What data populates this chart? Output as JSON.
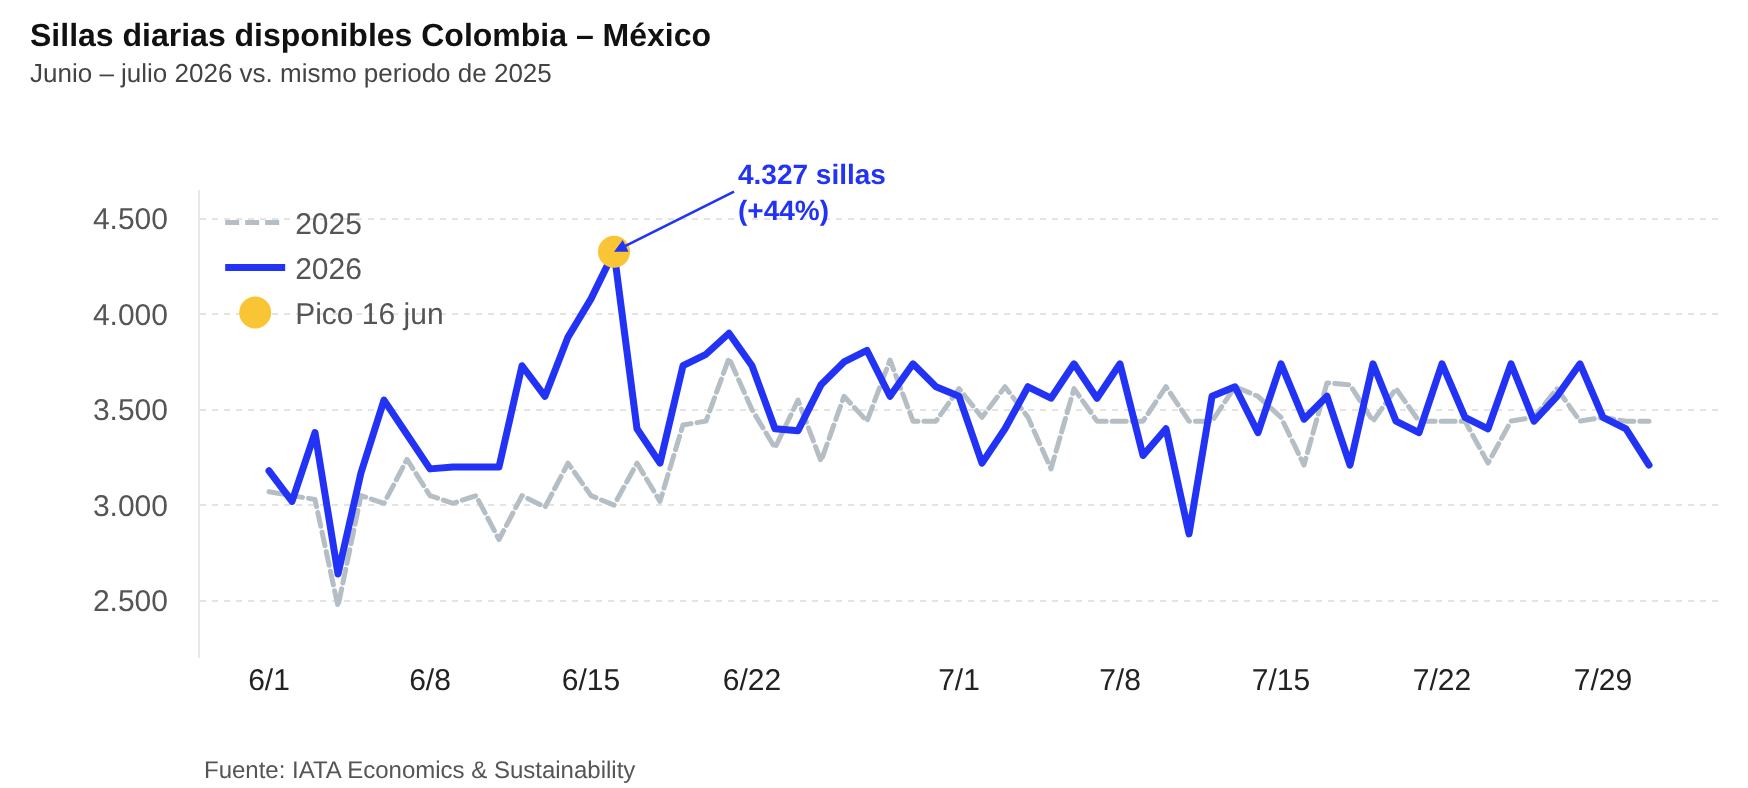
{
  "chart_data": {
    "type": "line",
    "title": "Sillas diarias disponibles Colombia – México",
    "subtitle": "Junio – julio 2026 vs. mismo periodo de 2025",
    "x": [
      "2026-06-01",
      "2026-06-02",
      "2026-06-03",
      "2026-06-04",
      "2026-06-05",
      "2026-06-06",
      "2026-06-07",
      "2026-06-08",
      "2026-06-09",
      "2026-06-10",
      "2026-06-11",
      "2026-06-12",
      "2026-06-13",
      "2026-06-14",
      "2026-06-15",
      "2026-06-16",
      "2026-06-17",
      "2026-06-18",
      "2026-06-19",
      "2026-06-20",
      "2026-06-21",
      "2026-06-22",
      "2026-06-23",
      "2026-06-24",
      "2026-06-25",
      "2026-06-26",
      "2026-06-27",
      "2026-06-28",
      "2026-06-29",
      "2026-06-30",
      "2026-07-01",
      "2026-07-02",
      "2026-07-03",
      "2026-07-04",
      "2026-07-05",
      "2026-07-06",
      "2026-07-07",
      "2026-07-08",
      "2026-07-09",
      "2026-07-10",
      "2026-07-11",
      "2026-07-12",
      "2026-07-13",
      "2026-07-14",
      "2026-07-15",
      "2026-07-16",
      "2026-07-17",
      "2026-07-18",
      "2026-07-19",
      "2026-07-20",
      "2026-07-21",
      "2026-07-22",
      "2026-07-23",
      "2026-07-24",
      "2026-07-25",
      "2026-07-26",
      "2026-07-27",
      "2026-07-28",
      "2026-07-29",
      "2026-07-30",
      "2026-07-31"
    ],
    "series": [
      {
        "name": "2025",
        "color": "#b4bec4",
        "line_style": "dashed",
        "values": [
          3070,
          3050,
          3030,
          2470,
          3050,
          3010,
          3240,
          3050,
          3010,
          3050,
          2820,
          3050,
          2990,
          3220,
          3050,
          3000,
          3220,
          3020,
          3420,
          3440,
          3770,
          3500,
          3300,
          3550,
          3230,
          3570,
          3440,
          3760,
          3440,
          3440,
          3610,
          3460,
          3620,
          3460,
          3190,
          3610,
          3440,
          3440,
          3440,
          3620,
          3440,
          3440,
          3620,
          3570,
          3460,
          3210,
          3640,
          3630,
          3440,
          3610,
          3440,
          3440,
          3440,
          3220,
          3440,
          3460,
          3610,
          3440,
          3460,
          3440,
          3440
        ]
      },
      {
        "name": "2026",
        "color": "#2233f5",
        "line_style": "solid",
        "values": [
          3180,
          3020,
          3380,
          2640,
          3170,
          3550,
          3370,
          3190,
          3200,
          3200,
          3200,
          3730,
          3570,
          3880,
          4080,
          4327,
          3400,
          3220,
          3730,
          3790,
          3900,
          3730,
          3400,
          3390,
          3630,
          3750,
          3810,
          3570,
          3740,
          3620,
          3570,
          3220,
          3400,
          3620,
          3560,
          3740,
          3560,
          3740,
          3260,
          3400,
          2850,
          3570,
          3620,
          3380,
          3740,
          3450,
          3570,
          3210,
          3740,
          3440,
          3380,
          3740,
          3460,
          3400,
          3740,
          3440,
          3570,
          3740,
          3460,
          3400,
          3210
        ]
      },
      {
        "name": "Pico 16 jun",
        "type": "scatter",
        "marker": "circle",
        "color": "#f9c535",
        "x": [
          "2026-06-16"
        ],
        "values": [
          4327
        ]
      }
    ],
    "annotations": [
      {
        "text": "4.327 sillas\n(+44%)",
        "x": "2026-06-16",
        "y": 4327
      },
      "Fuente: IATA Economics & Sustainability"
    ],
    "xlim": [
      "2026-05-29",
      "2026-08-03"
    ],
    "xticks": [
      {
        "value": "2026-06-01",
        "label": "6/1"
      },
      {
        "value": "2026-06-08",
        "label": "6/8"
      },
      {
        "value": "2026-06-15",
        "label": "6/15"
      },
      {
        "value": "2026-06-22",
        "label": "6/22"
      },
      {
        "value": "2026-07-01",
        "label": "7/1"
      },
      {
        "value": "2026-07-08",
        "label": "7/8"
      },
      {
        "value": "2026-07-15",
        "label": "7/15"
      },
      {
        "value": "2026-07-22",
        "label": "7/22"
      },
      {
        "value": "2026-07-29",
        "label": "7/29"
      }
    ],
    "yticks": [
      {
        "value": 2500,
        "label": "2.500"
      },
      {
        "value": 3000,
        "label": "3.000"
      },
      {
        "value": 3500,
        "label": "3.500"
      },
      {
        "value": 4000,
        "label": "4.000"
      },
      {
        "value": 4500,
        "label": "4.500"
      }
    ],
    "ylim": [
      2200,
      4650
    ],
    "grid": "y",
    "legend": "top left",
    "marker": "none"
  }
}
